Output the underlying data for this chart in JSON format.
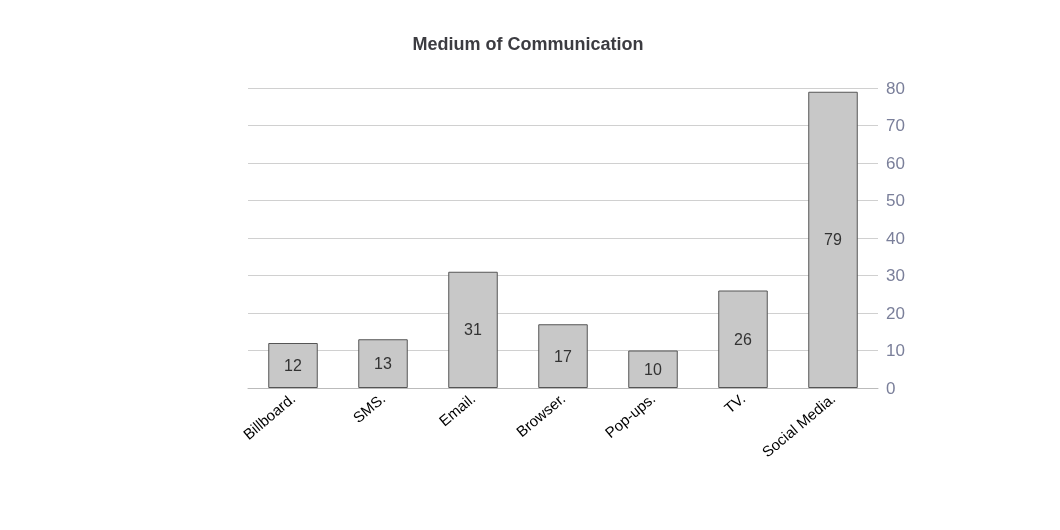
{
  "chart_data": {
    "type": "bar",
    "title": "Medium of Communication",
    "categories": [
      "Billboard.",
      "SMS.",
      "Email.",
      "Browser.",
      "Pop-ups.",
      "TV.",
      "Social Media."
    ],
    "values": [
      12,
      13,
      31,
      17,
      10,
      26,
      79
    ],
    "color": "#c8c8c8",
    "ylim": [
      0,
      80
    ],
    "yticks": [
      0,
      10,
      20,
      30,
      40,
      50,
      60,
      70,
      80
    ],
    "grid": "y",
    "data_labels": true
  }
}
